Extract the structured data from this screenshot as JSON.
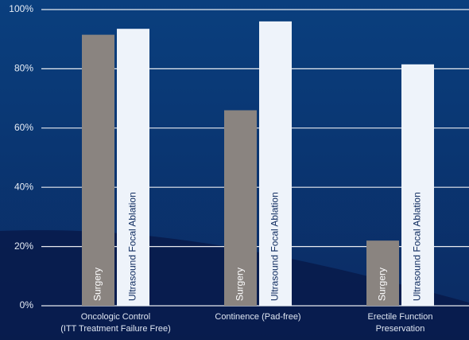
{
  "chart_data": {
    "type": "bar",
    "categories": [
      "Oncologic Control\n(ITT Treatment Failure Free)",
      "Continence (Pad-free)",
      "Erectile Function\nPreservation"
    ],
    "series": [
      {
        "name": "Surgery",
        "color": "#8a8480",
        "label_color": "#ffffff",
        "values": [
          91.5,
          66,
          22
        ]
      },
      {
        "name": "Ultrasound Focal Ablation",
        "color": "#eef3fa",
        "label_color": "#0d2a5e",
        "values": [
          93.5,
          96,
          81.5
        ]
      }
    ],
    "ylim": [
      0,
      100
    ],
    "yticks": [
      {
        "value": 0,
        "label": "0%"
      },
      {
        "value": 20,
        "label": "20%"
      },
      {
        "value": 40,
        "label": "40%"
      },
      {
        "value": 60,
        "label": "60%"
      },
      {
        "value": 80,
        "label": "80%"
      },
      {
        "value": 100,
        "label": "100%"
      }
    ],
    "grid": true
  }
}
